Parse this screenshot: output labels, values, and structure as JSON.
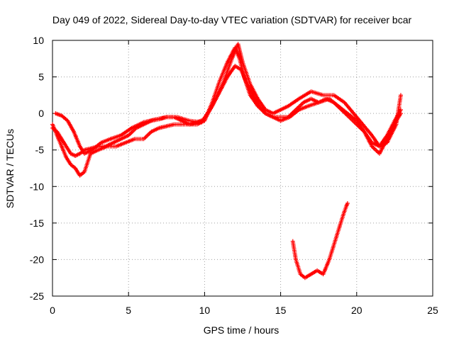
{
  "chart_data": {
    "type": "scatter",
    "title": "Day 049 of 2022, Sidereal Day-to-day VTEC variation (SDTVAR) for receiver bcar",
    "xlabel": "GPS time / hours",
    "ylabel": "SDTVAR / TECUs",
    "xlim": [
      0,
      25
    ],
    "ylim": [
      -25,
      10
    ],
    "xticks": [
      0,
      5,
      10,
      15,
      20,
      25
    ],
    "yticks": [
      -25,
      -20,
      -15,
      -10,
      -5,
      0,
      5,
      10
    ],
    "grid": true,
    "marker": "+",
    "color": "#ff0000",
    "series": [
      {
        "name": "track-1",
        "x": [
          0.0,
          0.3,
          0.6,
          0.9,
          1.2,
          1.5,
          1.8,
          2.1,
          2.5,
          3.0,
          3.5,
          4.0,
          4.5,
          5.0,
          5.5,
          6.0,
          6.5,
          7.0,
          7.5,
          8.0,
          8.5,
          9.0,
          9.5,
          10.0,
          10.5,
          11.0,
          11.5,
          12.0,
          12.3,
          12.6,
          13.0,
          13.5,
          14.0,
          14.5,
          15.0,
          15.5,
          16.0,
          16.5,
          17.0,
          17.5,
          18.0,
          18.5,
          19.0,
          19.5,
          20.0,
          20.5,
          21.0,
          21.5,
          22.0,
          22.5,
          22.9
        ],
        "y": [
          -2.0,
          -2.5,
          -3.5,
          -4.5,
          -5.5,
          -5.8,
          -5.5,
          -5.0,
          -4.8,
          -4.5,
          -4.5,
          -4.0,
          -3.5,
          -3.0,
          -2.0,
          -1.5,
          -1.0,
          -0.8,
          -0.5,
          -0.5,
          -1.0,
          -1.5,
          -1.5,
          -1.0,
          1.5,
          4.5,
          7.0,
          9.0,
          7.5,
          5.0,
          2.5,
          1.0,
          0.0,
          -0.5,
          -0.5,
          -0.5,
          0.5,
          1.5,
          2.0,
          1.5,
          2.0,
          1.5,
          0.5,
          -0.5,
          -1.5,
          -2.5,
          -4.0,
          -4.5,
          -3.0,
          -1.0,
          0.5
        ]
      },
      {
        "name": "track-2",
        "x": [
          0.2,
          0.6,
          1.0,
          1.4,
          1.8,
          2.1,
          2.6,
          3.2,
          3.8,
          4.5,
          5.2,
          6.0,
          6.8,
          7.5,
          8.2,
          9.0,
          9.8,
          10.5,
          11.2,
          11.8,
          12.2,
          12.5,
          13.0,
          13.5,
          14.0,
          14.5,
          15.0,
          15.5,
          16.2,
          17.0,
          17.8,
          18.5,
          19.2,
          19.8,
          20.4,
          21.0,
          21.5,
          22.0,
          22.6,
          22.9
        ],
        "y": [
          0.0,
          -0.3,
          -1.0,
          -2.5,
          -4.5,
          -5.5,
          -5.0,
          -4.0,
          -3.5,
          -3.0,
          -2.0,
          -1.2,
          -0.8,
          -0.5,
          -0.5,
          -1.0,
          -1.2,
          1.0,
          4.0,
          7.5,
          9.5,
          7.0,
          4.0,
          2.0,
          0.5,
          0.0,
          0.5,
          1.0,
          2.0,
          3.0,
          2.5,
          2.5,
          1.5,
          0.0,
          -1.5,
          -3.0,
          -4.5,
          -4.0,
          -1.5,
          2.5
        ]
      },
      {
        "name": "track-3",
        "x": [
          0.0,
          0.3,
          0.6,
          0.9,
          1.2,
          1.5,
          1.8,
          2.1,
          2.5,
          3.0,
          3.6,
          4.2,
          4.8,
          5.4,
          6.0,
          6.5,
          7.0,
          7.4,
          8.0,
          8.5,
          9.0,
          9.5,
          10.0,
          10.5,
          11.0,
          11.5,
          12.0,
          12.4,
          12.8,
          13.2,
          13.6,
          14.0,
          14.5,
          15.0,
          15.6,
          16.2,
          16.8,
          17.5,
          18.2,
          18.8,
          19.4,
          20.0,
          20.5,
          21.0,
          21.5,
          22.0,
          22.6,
          22.9
        ],
        "y": [
          -1.5,
          -3.0,
          -4.5,
          -6.0,
          -7.0,
          -7.5,
          -8.5,
          -8.0,
          -5.5,
          -5.0,
          -4.5,
          -4.5,
          -4.0,
          -3.5,
          -3.5,
          -2.5,
          -2.0,
          -1.8,
          -1.5,
          -1.5,
          -1.5,
          -1.2,
          -0.8,
          1.0,
          3.0,
          5.0,
          6.5,
          6.0,
          4.0,
          2.5,
          1.0,
          0.0,
          -0.5,
          -1.0,
          -0.5,
          0.5,
          1.0,
          1.5,
          2.0,
          1.0,
          0.0,
          -1.0,
          -2.5,
          -4.5,
          -5.5,
          -3.5,
          -1.0,
          0.0
        ]
      },
      {
        "name": "track-4",
        "x": [
          15.8,
          16.0,
          16.3,
          16.6,
          17.0,
          17.4,
          17.8,
          18.2,
          18.5,
          18.8,
          19.1,
          19.3,
          19.4
        ],
        "y": [
          -17.5,
          -20.0,
          -22.0,
          -22.5,
          -22.0,
          -21.5,
          -22.0,
          -20.0,
          -18.0,
          -16.0,
          -14.0,
          -12.8,
          -12.3
        ]
      }
    ]
  }
}
